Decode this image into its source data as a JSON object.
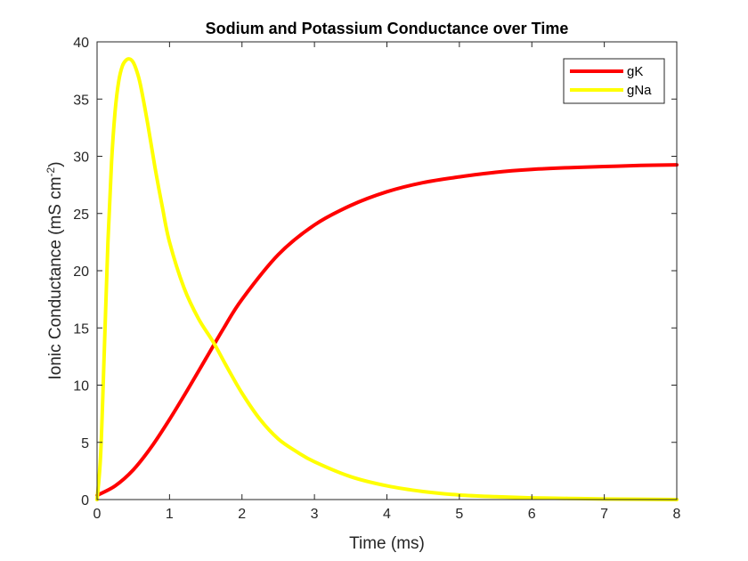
{
  "chart_data": {
    "type": "line",
    "title": "Sodium and Potassium Conductance over Time",
    "xlabel": "Time (ms)",
    "ylabel": "Ionic Conductance (mS cm^-2)",
    "ylabel_parts": {
      "main": "Ionic Conductance (mS cm",
      "sup": "-2",
      "close": ")"
    },
    "xlim": [
      0,
      8
    ],
    "ylim": [
      0,
      40
    ],
    "xticks": [
      0,
      1,
      2,
      3,
      4,
      5,
      6,
      7,
      8
    ],
    "yticks": [
      0,
      5,
      10,
      15,
      20,
      25,
      30,
      35,
      40
    ],
    "grid": false,
    "legend_position": "top-right",
    "series": [
      {
        "name": "gK",
        "color": "#ff0000",
        "x": [
          0,
          0.25,
          0.5,
          0.75,
          1.0,
          1.25,
          1.5,
          1.75,
          2.0,
          2.5,
          3.0,
          3.5,
          4.0,
          4.5,
          5.0,
          5.5,
          6.0,
          6.5,
          7.0,
          7.5,
          8.0
        ],
        "y": [
          0.37,
          1.2,
          2.6,
          4.6,
          7.0,
          9.6,
          12.3,
          15.0,
          17.5,
          21.4,
          24.0,
          25.7,
          26.9,
          27.7,
          28.2,
          28.6,
          28.85,
          29.0,
          29.1,
          29.2,
          29.25
        ]
      },
      {
        "name": "gNa",
        "color": "#ffff00",
        "x": [
          0,
          0.05,
          0.1,
          0.15,
          0.2,
          0.25,
          0.3,
          0.35,
          0.4,
          0.45,
          0.5,
          0.55,
          0.6,
          0.7,
          0.8,
          0.9,
          1.0,
          1.2,
          1.4,
          1.6,
          1.8,
          2.0,
          2.25,
          2.5,
          2.75,
          3.0,
          3.5,
          4.0,
          4.5,
          5.0,
          5.5,
          6.0,
          6.5,
          7.0,
          8.0
        ],
        "y": [
          0.0,
          4.0,
          13.0,
          22.5,
          29.5,
          34.0,
          36.6,
          37.9,
          38.4,
          38.5,
          38.2,
          37.4,
          36.2,
          32.8,
          29.0,
          25.6,
          22.5,
          18.5,
          15.8,
          13.8,
          11.5,
          9.3,
          7.0,
          5.3,
          4.2,
          3.3,
          2.0,
          1.2,
          0.7,
          0.4,
          0.25,
          0.15,
          0.1,
          0.05,
          0.0
        ]
      }
    ]
  }
}
